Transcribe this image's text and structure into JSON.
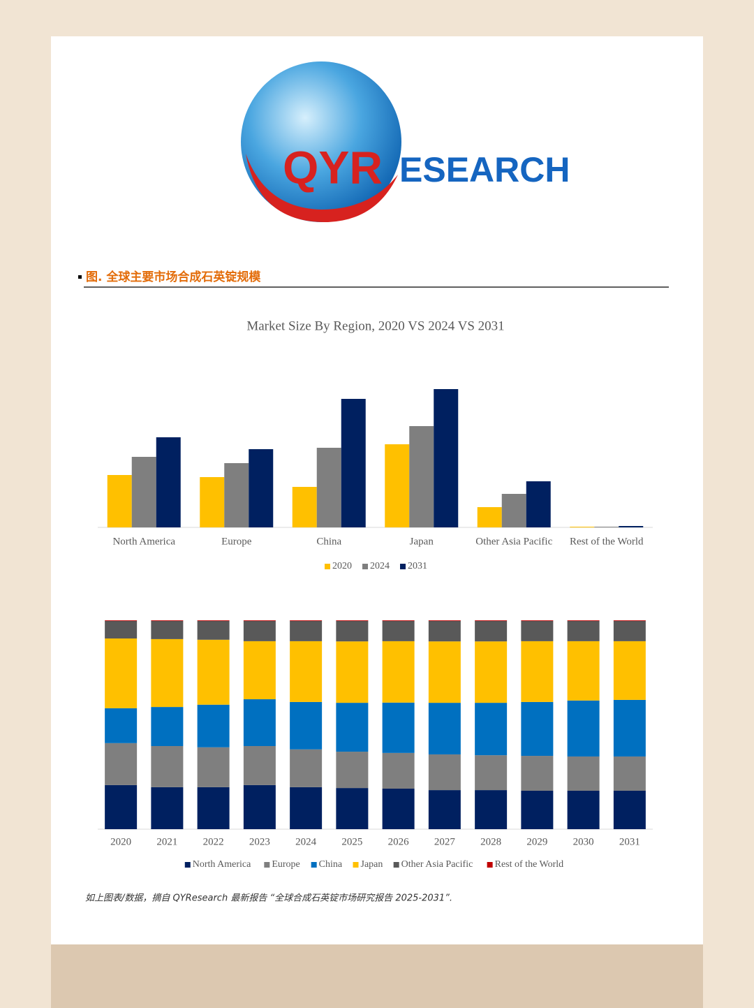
{
  "header": {
    "logo_red": "QYR",
    "logo_blue": "ESEARCH"
  },
  "heading": "图.  全球主要市场合成石英锭规模",
  "chart_data": [
    {
      "type": "bar",
      "title": "Market Size By Region, 2020 VS 2024 VS 2031",
      "categories": [
        "North America",
        "Europe",
        "China",
        "Japan",
        "Other Asia Pacific",
        "Rest of the World"
      ],
      "series": [
        {
          "name": "2020",
          "color": "#ffc000",
          "values": [
            75,
            72,
            58,
            119,
            29,
            1
          ]
        },
        {
          "name": "2024",
          "color": "#7f7f7f",
          "values": [
            101,
            92,
            114,
            145,
            48,
            1
          ]
        },
        {
          "name": "2031",
          "color": "#002060",
          "values": [
            129,
            112,
            184,
            198,
            66,
            2
          ]
        }
      ],
      "ylim": [
        0,
        205
      ]
    },
    {
      "type": "stacked_bar",
      "categories": [
        "2020",
        "2021",
        "2022",
        "2023",
        "2024",
        "2025",
        "2026",
        "2027",
        "2028",
        "2029",
        "2030",
        "2031"
      ],
      "series": [
        {
          "name": "North America",
          "color": "#002060",
          "values": [
            21.1,
            20.1,
            20.1,
            21.1,
            20.1,
            19.7,
            19.4,
            18.7,
            18.7,
            18.4,
            18.4,
            18.4
          ]
        },
        {
          "name": "Europe",
          "color": "#7f7f7f",
          "values": [
            20.1,
            19.7,
            19.1,
            18.7,
            18.1,
            17.4,
            17.1,
            17.1,
            16.7,
            16.7,
            16.4,
            16.4
          ]
        },
        {
          "name": "China",
          "color": "#0070c0",
          "values": [
            16.7,
            18.7,
            20.4,
            22.4,
            22.7,
            23.4,
            24.1,
            24.7,
            25.1,
            25.8,
            26.8,
            27.1
          ]
        },
        {
          "name": "Japan",
          "color": "#ffc000",
          "values": [
            33.4,
            32.5,
            31.1,
            27.8,
            29.1,
            29.4,
            29.4,
            29.4,
            29.4,
            29.1,
            28.4,
            28.1
          ]
        },
        {
          "name": "Other Asia Pacific",
          "color": "#595959",
          "values": [
            8.4,
            8.7,
            9.0,
            9.7,
            9.7,
            9.8,
            9.7,
            9.8,
            9.8,
            9.7,
            9.7,
            9.7
          ]
        },
        {
          "name": "Rest of the World",
          "color": "#c00000",
          "values": [
            0.3,
            0.3,
            0.3,
            0.3,
            0.3,
            0.3,
            0.3,
            0.3,
            0.3,
            0.3,
            0.3,
            0.3
          ]
        }
      ],
      "ylim": [
        0,
        100
      ]
    }
  ],
  "caption": "如上图表/数据，摘自 QYResearch 最新报告 “全球合成石英锭市场研究报告 2025-2031”."
}
